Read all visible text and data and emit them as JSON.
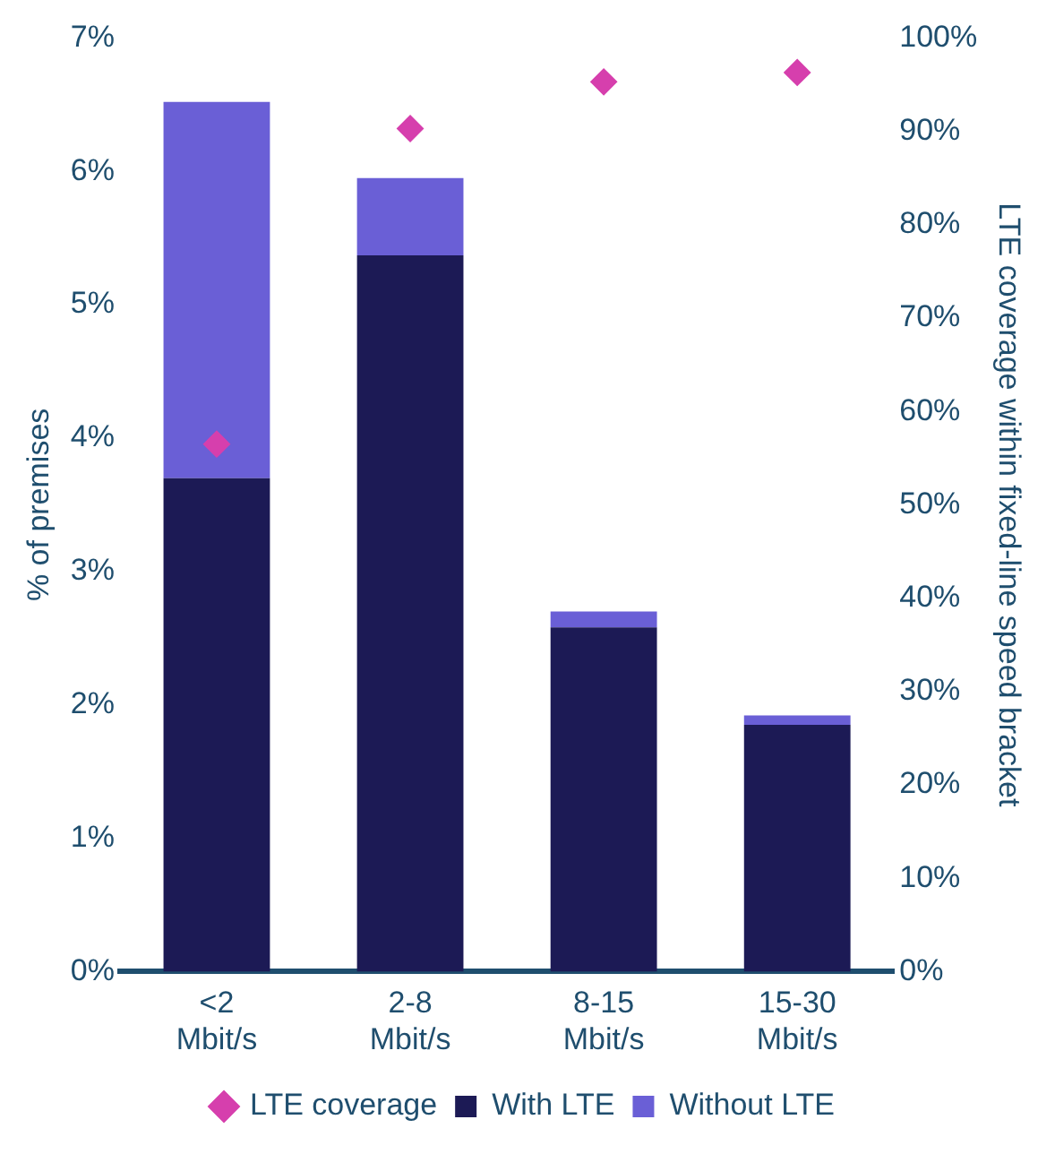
{
  "chart_data": {
    "type": "bar",
    "stacked": true,
    "ylabel": "% of premises",
    "y2label": "LTE coverage within fixed-line speed bracket",
    "categories": [
      "<2 Mbit/s",
      "2-8 Mbit/s",
      "8-15 Mbit/s",
      "15-30 Mbit/s"
    ],
    "series": [
      {
        "name": "With LTE",
        "color": "#1c1a55",
        "values": [
          3.7,
          5.37,
          2.58,
          1.85
        ]
      },
      {
        "name": "Without LTE",
        "color": "#6a5fd6",
        "values": [
          2.82,
          0.58,
          0.12,
          0.07
        ]
      },
      {
        "name": "LTE coverage",
        "type": "scatter",
        "axis": "y2",
        "marker": "diamond",
        "color": "#d63fad",
        "values": [
          56.5,
          90.3,
          95.3,
          96.3
        ]
      }
    ],
    "ylim": [
      0,
      7
    ],
    "yticks": [
      {
        "value": 0,
        "label": "0%"
      },
      {
        "value": 1,
        "label": "1%"
      },
      {
        "value": 2,
        "label": "2%"
      },
      {
        "value": 3,
        "label": "3%"
      },
      {
        "value": 4,
        "label": "4%"
      },
      {
        "value": 5,
        "label": "5%"
      },
      {
        "value": 6,
        "label": "6%"
      },
      {
        "value": 7,
        "label": "7%"
      }
    ],
    "y2lim": [
      0,
      100
    ],
    "y2ticks": [
      {
        "value": 0,
        "label": "0%"
      },
      {
        "value": 10,
        "label": "10%"
      },
      {
        "value": 20,
        "label": "20%"
      },
      {
        "value": 30,
        "label": "30%"
      },
      {
        "value": 40,
        "label": "40%"
      },
      {
        "value": 50,
        "label": "50%"
      },
      {
        "value": 60,
        "label": "60%"
      },
      {
        "value": 70,
        "label": "70%"
      },
      {
        "value": 80,
        "label": "80%"
      },
      {
        "value": 90,
        "label": "90%"
      },
      {
        "value": 100,
        "label": "100%"
      }
    ],
    "grid": false,
    "legend": "bottom"
  }
}
